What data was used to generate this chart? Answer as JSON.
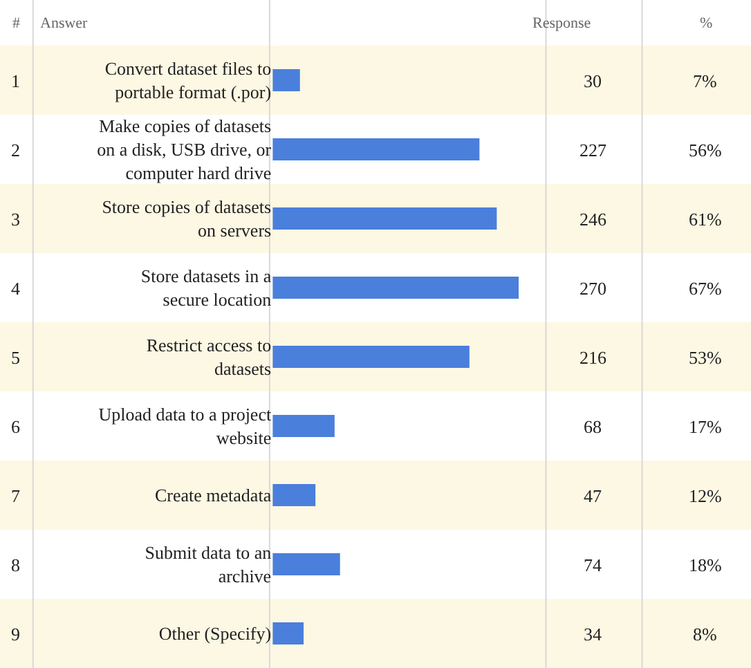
{
  "chart_data": {
    "type": "bar",
    "orientation": "horizontal",
    "categories": [
      "Convert dataset files to portable format (.por)",
      "Make copies of datasets on a disk, USB drive, or computer hard drive",
      "Store copies of datasets on servers",
      "Store datasets in a secure location",
      "Restrict access to datasets",
      "Upload data to a project website",
      "Create metadata",
      "Submit data to an archive",
      "Other (Specify)"
    ],
    "series": [
      {
        "name": "Response",
        "color": "#4a7fdc",
        "values": [
          30,
          227,
          246,
          270,
          216,
          68,
          47,
          74,
          34
        ]
      }
    ],
    "xlim": [
      0,
      300
    ],
    "tick_labels": "y",
    "data_labels": true,
    "grid": false,
    "legend": false,
    "annotations": [
      "#",
      "Answer",
      "%",
      "1",
      "2",
      "3",
      "4",
      "5",
      "6",
      "7",
      "8",
      "9",
      "7%",
      "56%",
      "61%",
      "67%",
      "53%",
      "17%",
      "12%",
      "18%",
      "8%"
    ]
  }
}
